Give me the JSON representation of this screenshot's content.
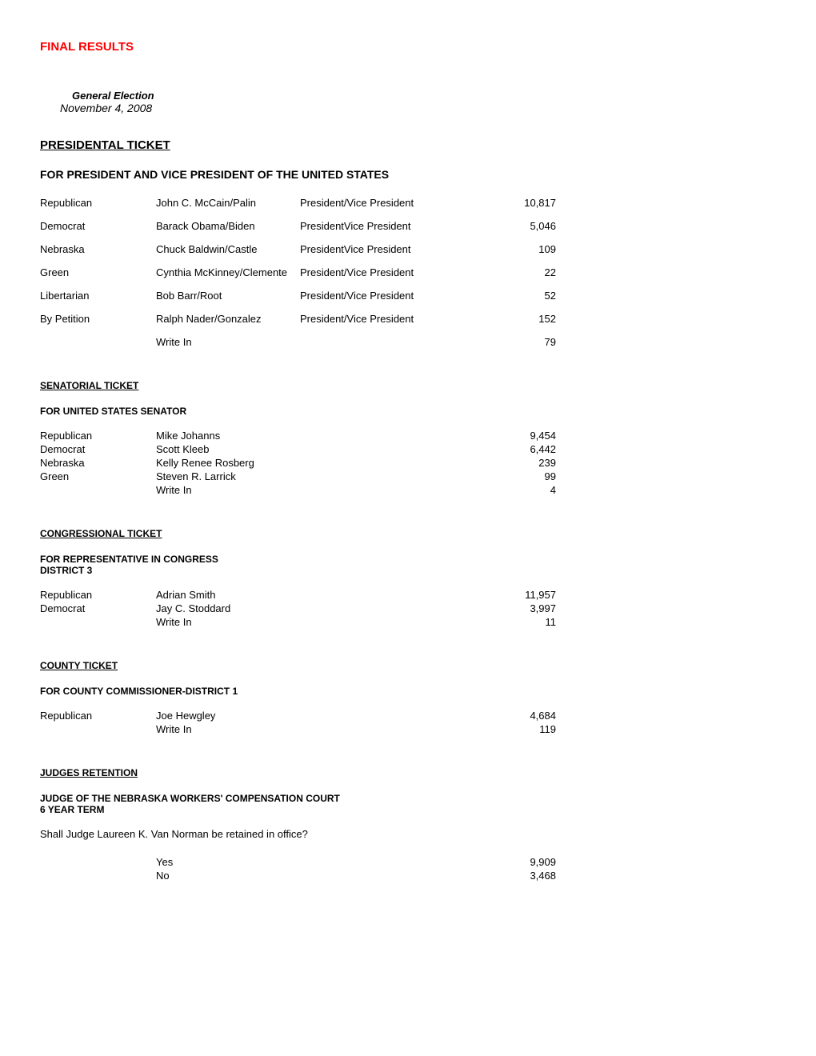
{
  "header": {
    "final_results": "FINAL RESULTS",
    "election_type": "General Election",
    "election_date": "November 4, 2008"
  },
  "presidential": {
    "ticket_header": "PRESIDENTAL TICKET",
    "race_header": "FOR PRESIDENT  AND VICE PRESIDENT OF THE UNITED STATES",
    "rows": [
      {
        "party": "Republican",
        "candidate": "John C. McCain/Palin",
        "office": "President/Vice President",
        "votes": "10,817"
      },
      {
        "party": "Democrat",
        "candidate": "Barack Obama/Biden",
        "office": "PresidentVice President",
        "votes": "5,046"
      },
      {
        "party": "Nebraska",
        "candidate": "Chuck Baldwin/Castle",
        "office": "PresidentVice President",
        "votes": "109"
      },
      {
        "party": "Green",
        "candidate": "Cynthia McKinney/Clemente",
        "office": "President/Vice President",
        "votes": "22"
      },
      {
        "party": "Libertarian",
        "candidate": "Bob Barr/Root",
        "office": "President/Vice President",
        "votes": "52"
      },
      {
        "party": "By Petition",
        "candidate": "Ralph Nader/Gonzalez",
        "office": "President/Vice President",
        "votes": "152"
      },
      {
        "party": "",
        "candidate": "Write In",
        "office": "",
        "votes": "79"
      }
    ]
  },
  "senatorial": {
    "ticket_header": "SENATORIAL TICKET",
    "race_header": "FOR UNITED STATES SENATOR",
    "rows": [
      {
        "party": "Republican",
        "candidate": "Mike Johanns",
        "votes": "9,454"
      },
      {
        "party": "Democrat",
        "candidate": "Scott Kleeb",
        "votes": "6,442"
      },
      {
        "party": "Nebraska",
        "candidate": "Kelly Renee Rosberg",
        "votes": "239"
      },
      {
        "party": "Green",
        "candidate": "Steven R. Larrick",
        "votes": "99"
      },
      {
        "party": "",
        "candidate": "Write In",
        "votes": "4"
      }
    ]
  },
  "congressional": {
    "ticket_header": "CONGRESSIONAL TICKET",
    "race_header_line1": "FOR REPRESENTATIVE IN CONGRESS",
    "race_header_line2": "DISTRICT 3",
    "rows": [
      {
        "party": "Republican",
        "candidate": "Adrian Smith",
        "votes": "11,957"
      },
      {
        "party": "Democrat",
        "candidate": "Jay C. Stoddard",
        "votes": "3,997"
      },
      {
        "party": "",
        "candidate": "Write In",
        "votes": "11"
      }
    ]
  },
  "county": {
    "ticket_header": "COUNTY TICKET",
    "race_header": "FOR COUNTY COMMISSIONER-DISTRICT 1",
    "rows": [
      {
        "party": "Republican",
        "candidate": "Joe Hewgley",
        "votes": "4,684"
      },
      {
        "party": "",
        "candidate": "Write In",
        "votes": "119"
      }
    ]
  },
  "judges": {
    "ticket_header": "JUDGES RETENTION",
    "race_header_line1": "JUDGE OF THE NEBRASKA WORKERS' COMPENSATION COURT",
    "race_header_line2": "6 YEAR TERM",
    "question": "Shall Judge Laureen K. Van Norman be retained in office?",
    "rows": [
      {
        "party": "",
        "candidate": "Yes",
        "votes": "9,909"
      },
      {
        "party": "",
        "candidate": "No",
        "votes": "3,468"
      }
    ]
  }
}
